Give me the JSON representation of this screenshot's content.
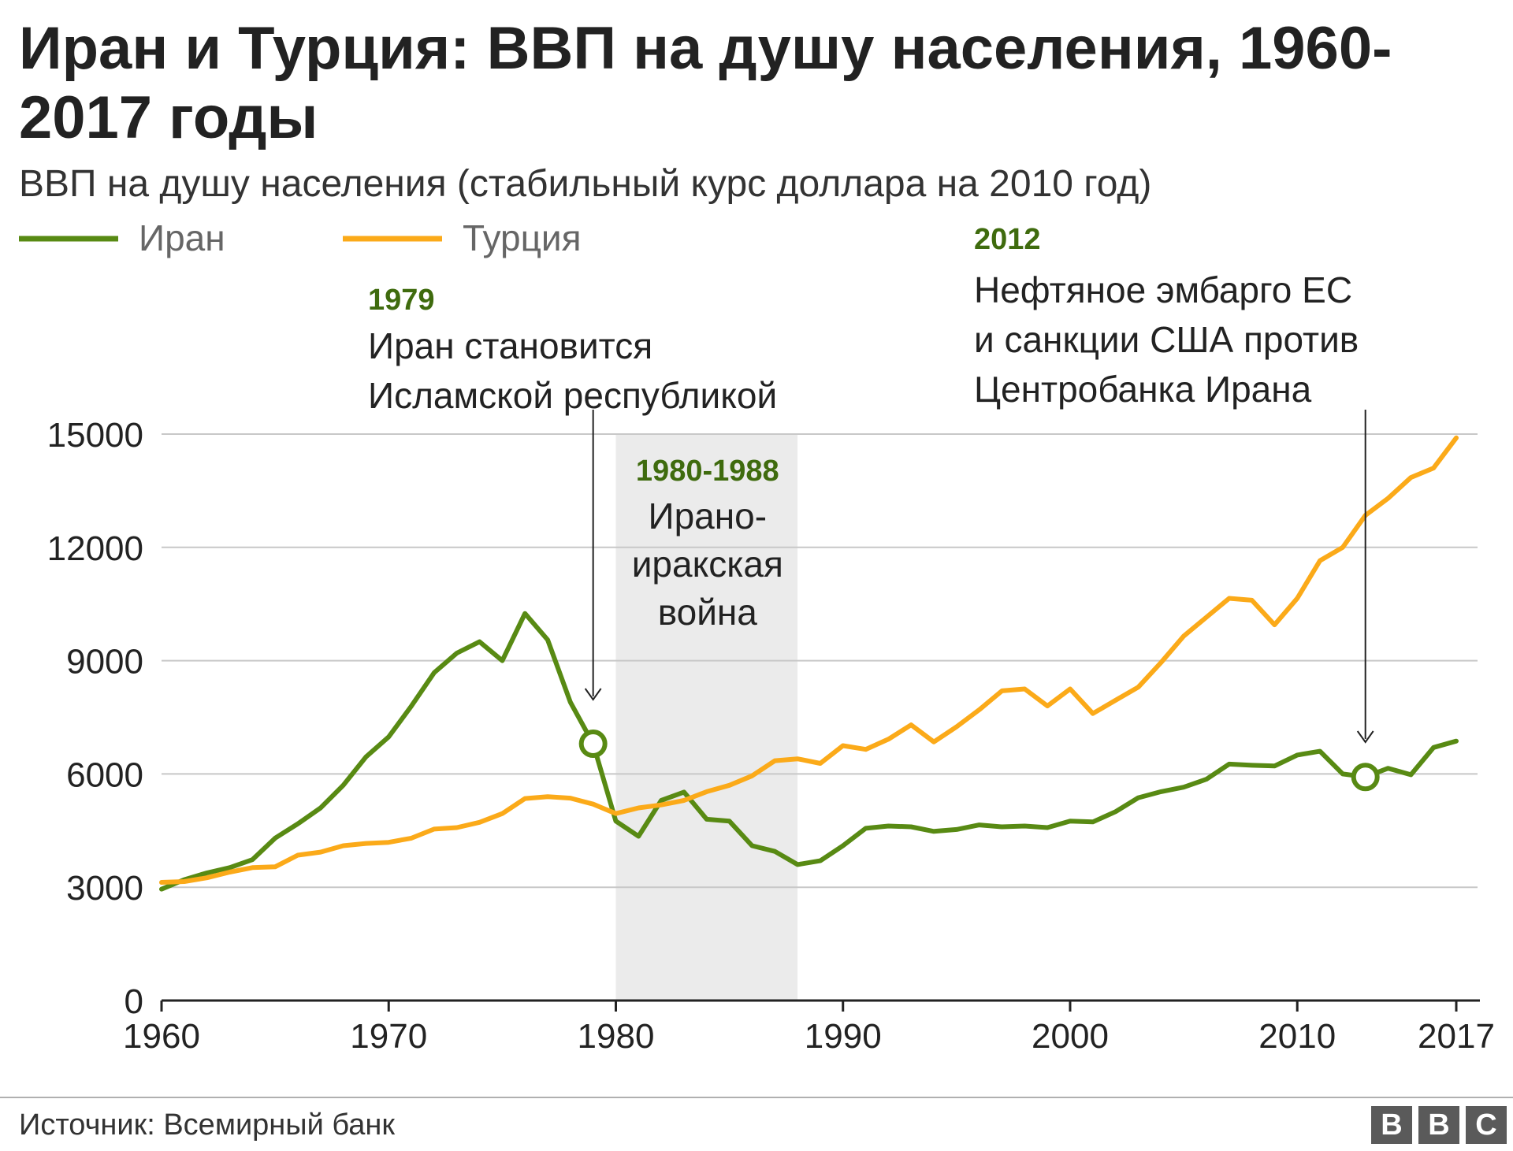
{
  "title": "Иран и Турция: ВВП на душу населения, 1960-2017 годы",
  "subtitle": "ВВП на душу населения (стабильный курс доллара на 2010 год)",
  "source": "Источник: Всемирный банк",
  "logo": [
    "B",
    "B",
    "C"
  ],
  "chart_data": {
    "type": "line",
    "x": [
      1960,
      1961,
      1962,
      1963,
      1964,
      1965,
      1966,
      1967,
      1968,
      1969,
      1970,
      1971,
      1972,
      1973,
      1974,
      1975,
      1976,
      1977,
      1978,
      1979,
      1980,
      1981,
      1982,
      1983,
      1984,
      1985,
      1986,
      1987,
      1988,
      1989,
      1990,
      1991,
      1992,
      1993,
      1994,
      1995,
      1996,
      1997,
      1998,
      1999,
      2000,
      2001,
      2002,
      2003,
      2004,
      2005,
      2006,
      2007,
      2008,
      2009,
      2010,
      2011,
      2012,
      2013,
      2014,
      2015,
      2016,
      2017
    ],
    "series": [
      {
        "name": "Иран",
        "color": "#588a13",
        "values": [
          2950,
          3200,
          3380,
          3520,
          3730,
          4300,
          4680,
          5100,
          5700,
          6450,
          6980,
          7800,
          8680,
          9200,
          9500,
          9000,
          10250,
          9550,
          7900,
          6800,
          4750,
          4350,
          5300,
          5520,
          4800,
          4750,
          4100,
          3950,
          3600,
          3700,
          4100,
          4560,
          4620,
          4600,
          4480,
          4530,
          4650,
          4600,
          4620,
          4580,
          4750,
          4730,
          5000,
          5370,
          5530,
          5650,
          5860,
          6260,
          6230,
          6210,
          6500,
          6600,
          6000,
          5920,
          6150,
          5980,
          6700,
          6870
        ]
      },
      {
        "name": "Турция",
        "color": "#fbaa19",
        "values": [
          3130,
          3150,
          3250,
          3400,
          3520,
          3540,
          3850,
          3930,
          4100,
          4160,
          4190,
          4300,
          4540,
          4580,
          4720,
          4950,
          5350,
          5400,
          5360,
          5200,
          4950,
          5100,
          5180,
          5300,
          5530,
          5700,
          5950,
          6350,
          6400,
          6280,
          6750,
          6650,
          6920,
          7300,
          6850,
          7250,
          7700,
          8200,
          8250,
          7800,
          8250,
          7600,
          7950,
          8300,
          8950,
          9650,
          10150,
          10650,
          10600,
          9950,
          10650,
          11650,
          12000,
          12850,
          13300,
          13850,
          14100,
          14900
        ]
      }
    ],
    "xlim": [
      1960,
      2017
    ],
    "ylim": [
      0,
      15000
    ],
    "yticks": [
      "0",
      "3000",
      "6000",
      "9000",
      "12000",
      "15000"
    ],
    "xticks": [
      "1960",
      "1970",
      "1980",
      "1990",
      "2000",
      "2010",
      "2017"
    ],
    "grid": true,
    "legend_position": "top-left",
    "shaded_region": {
      "from": 1980,
      "to": 1988
    },
    "annotations": [
      {
        "year_label": "1979",
        "lines": [
          "Иран становится",
          "Исламской республикой"
        ],
        "x": 1979,
        "marker_value": 6800
      },
      {
        "year_label": "1980-1988",
        "lines": [
          "Ирано-",
          "иракская",
          "война"
        ],
        "x": 1984
      },
      {
        "year_label": "2012",
        "lines": [
          "Нефтяное эмбарго ЕС",
          "и санкции США против",
          "Центробанка Ирана"
        ],
        "x": 2013,
        "marker_value": 5920
      }
    ],
    "annotation_color": "#3f6b0e"
  }
}
